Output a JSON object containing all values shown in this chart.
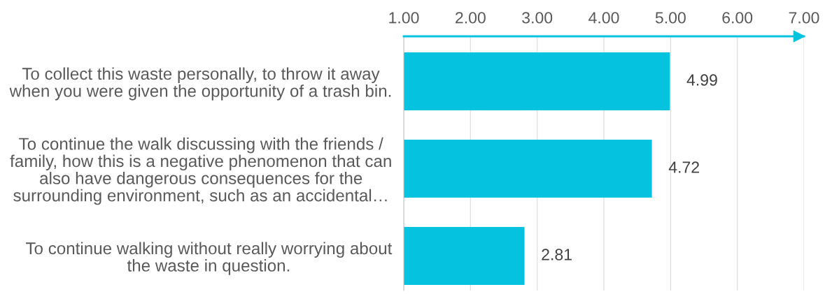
{
  "chart_data": {
    "type": "bar",
    "orientation": "horizontal",
    "categories": [
      "To collect this waste personally, to throw it away\nwhen you were given the opportunity of a trash bin.",
      "To continue the walk discussing with the friends /\nfamily, how this is a negative phenomenon that can\nalso have dangerous consequences for the\nsurrounding environment, such as an accidental…",
      "To continue walking without really worrying about\nthe waste in question."
    ],
    "values": [
      4.99,
      4.72,
      2.81
    ],
    "color": "#05c3de",
    "xlim": [
      1,
      7
    ],
    "xticks": [
      {
        "value": 1,
        "label": "1.00"
      },
      {
        "value": 2,
        "label": "2.00"
      },
      {
        "value": 3,
        "label": "3.00"
      },
      {
        "value": 4,
        "label": "4.00"
      },
      {
        "value": 5,
        "label": "5.00"
      },
      {
        "value": 6,
        "label": "6.00"
      },
      {
        "value": 7,
        "label": "7.00"
      }
    ],
    "grid": "x",
    "data_labels": true
  }
}
